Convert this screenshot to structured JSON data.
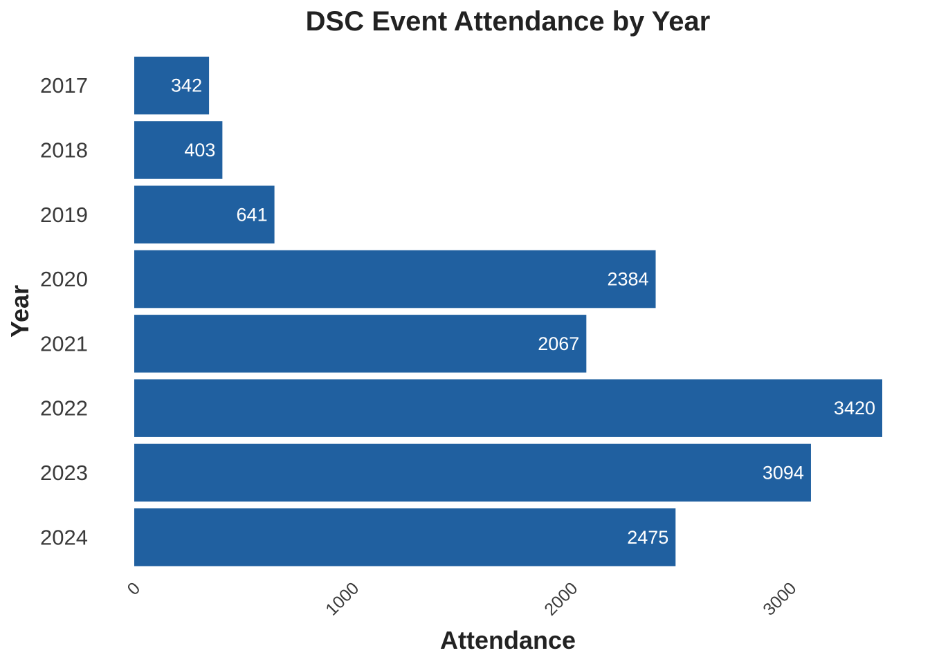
{
  "chart_data": {
    "type": "bar",
    "orientation": "horizontal",
    "title": "DSC Event Attendance by Year",
    "xlabel": "Attendance",
    "ylabel": "Year",
    "categories": [
      "2017",
      "2018",
      "2019",
      "2020",
      "2021",
      "2022",
      "2023",
      "2024"
    ],
    "values": [
      342,
      403,
      641,
      2384,
      2067,
      3420,
      3094,
      2475
    ],
    "data_labels": [
      "342",
      "403",
      "641",
      "2384",
      "2067",
      "3420",
      "3094",
      "2475"
    ],
    "xlim": [
      0,
      3420
    ],
    "x_ticks": [
      0,
      1000,
      2000,
      3000
    ],
    "x_tick_labels": [
      "0",
      "1000",
      "2000",
      "3000"
    ],
    "grid": false,
    "legend": "none",
    "bar_color": "#2060A0",
    "label_color": "#FFFFFF"
  }
}
